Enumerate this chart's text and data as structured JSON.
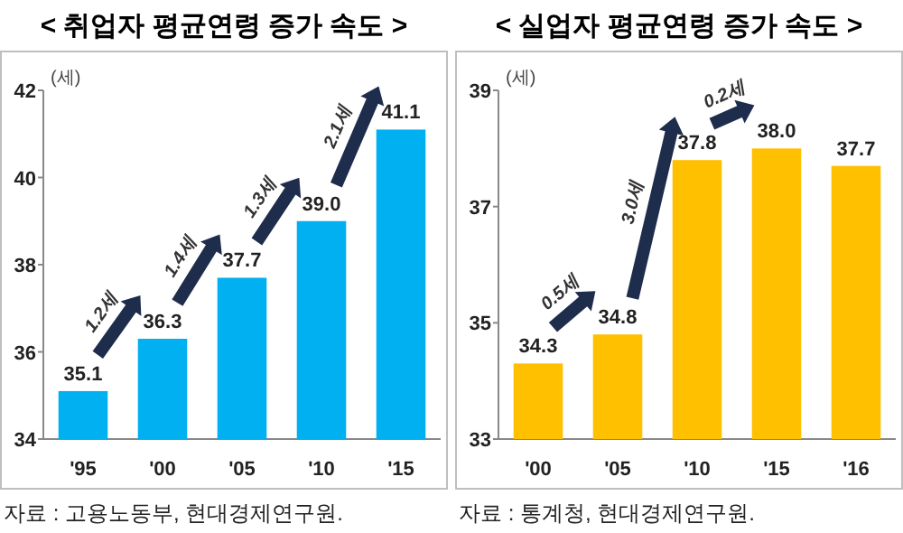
{
  "chart_data": [
    {
      "type": "bar",
      "title": "< 취업자 평균연령 증가 속도 >",
      "ylabel": "(세)",
      "categories": [
        "'95",
        "'00",
        "'05",
        "'10",
        "'15"
      ],
      "values": [
        35.1,
        36.3,
        37.7,
        39.0,
        41.1
      ],
      "value_labels": [
        "35.1",
        "36.3",
        "37.7",
        "39.0",
        "41.1"
      ],
      "color": "#00b0f0",
      "ylim": [
        34,
        42
      ],
      "yticks": [
        34,
        36,
        38,
        40,
        42
      ],
      "grid": false,
      "annotations": [
        "1.2세",
        "1.4세",
        "1.3세",
        "2.1세",
        "자료 : 고용노동부, 현대경제연구원."
      ]
    },
    {
      "type": "bar",
      "title": "< 실업자 평균연령 증가 속도 >",
      "ylabel": "(세)",
      "categories": [
        "'00",
        "'05",
        "'10",
        "'15",
        "'16"
      ],
      "values": [
        34.3,
        34.8,
        37.8,
        38.0,
        37.7
      ],
      "value_labels": [
        "34.3",
        "34.8",
        "37.8",
        "38.0",
        "37.7"
      ],
      "color": "#ffc000",
      "ylim": [
        33,
        39
      ],
      "yticks": [
        33,
        35,
        37,
        39
      ],
      "grid": false,
      "annotations": [
        "0.5세",
        "3.0세",
        "0.2세",
        "자료 : 통계청, 현대경제연구원."
      ]
    }
  ]
}
